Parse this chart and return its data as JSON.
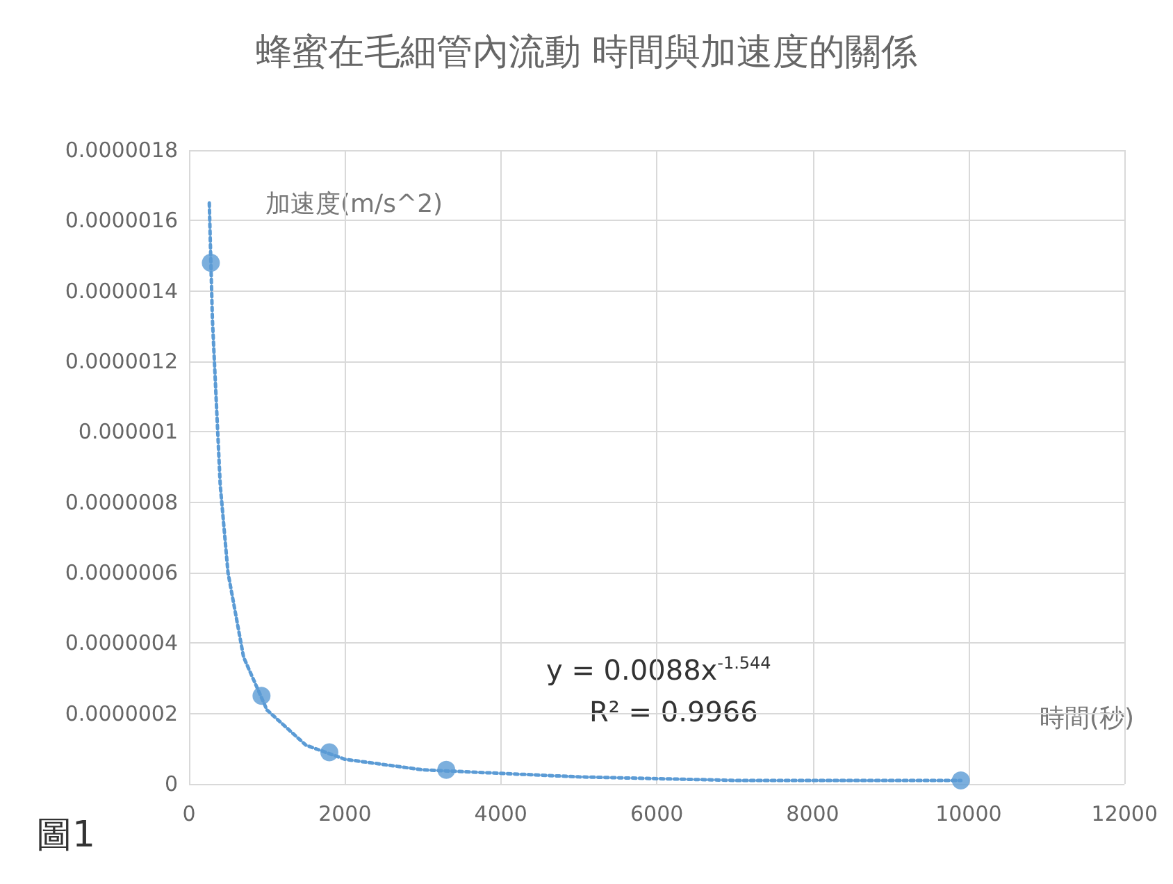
{
  "chart_data": {
    "type": "scatter",
    "title": "蜂蜜在毛細管內流動 時間與加速度的關係",
    "xlabel": "時間(秒)",
    "ylabel": "加速度(m/s^2)",
    "series": [
      {
        "color": "#5b9bd5",
        "marker": "circle",
        "x": [
          280,
          930,
          1800,
          3300,
          9900
        ],
        "values": [
          1.48e-06,
          2.5e-07,
          9e-08,
          4e-08,
          1e-08
        ]
      },
      {
        "type": "line",
        "color": "#5b9bd5",
        "line_style": "dotted",
        "marker": "none",
        "x": [
          260,
          300,
          400,
          500,
          700,
          1000,
          1500,
          2000,
          3000,
          5000,
          7000,
          9900
        ],
        "values": [
          1.65e-06,
          1.32e-06,
          8.5e-07,
          6e-07,
          3.6e-07,
          2.1e-07,
          1.1e-07,
          7e-08,
          4e-08,
          2e-08,
          1e-08,
          1e-08
        ]
      }
    ],
    "xlim": [
      0,
      12000
    ],
    "xticks": [
      0,
      2000,
      4000,
      6000,
      8000,
      10000,
      12000
    ],
    "ylim": [
      0,
      1.8e-06
    ],
    "yticks": [
      {
        "value": 0,
        "label": "0"
      },
      {
        "value": 2e-07,
        "label": "0.0000002"
      },
      {
        "value": 4e-07,
        "label": "0.0000004"
      },
      {
        "value": 6e-07,
        "label": "0.0000006"
      },
      {
        "value": 8e-07,
        "label": "0.0000008"
      },
      {
        "value": 1e-06,
        "label": "0.000001"
      },
      {
        "value": 1.2e-06,
        "label": "0.0000012"
      },
      {
        "value": 1.4e-06,
        "label": "0.0000014"
      },
      {
        "value": 1.6e-06,
        "label": "0.0000016"
      },
      {
        "value": 1.8e-06,
        "label": "0.0000018"
      }
    ],
    "grid": true,
    "annotations": [
      "y = 0.0088x$^{-1.544}$",
      "R² = 0.9966",
      "圖1"
    ]
  }
}
